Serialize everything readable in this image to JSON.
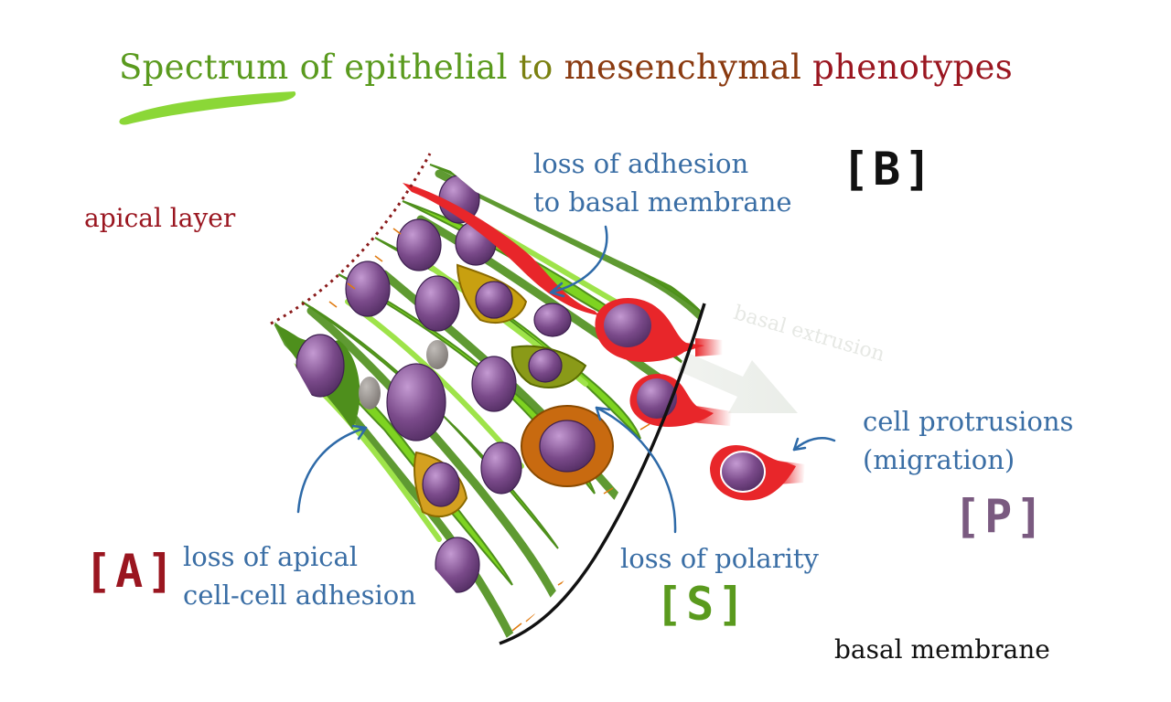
{
  "title": {
    "part1": "Spectrum of epithelial",
    "part2": "to",
    "part3": "mesenchymal",
    "part4": "phenotypes",
    "colors": [
      "#5a9a1e",
      "#6e8a12",
      "#8a3a10",
      "#9a1620"
    ]
  },
  "labels": {
    "apical_layer": "apical layer",
    "loss_adhesion_basal_1": "loss of adhesion",
    "loss_adhesion_basal_2": "to basal membrane",
    "basal_extrusion": "basal extrusion",
    "cell_protrusions_1": "cell protrusions",
    "cell_protrusions_2": "(migration)",
    "loss_apical_1": "loss of apical",
    "loss_apical_2": "cell-cell adhesion",
    "loss_polarity": "loss of polarity",
    "basal_membrane": "basal membrane"
  },
  "tags": {
    "A": {
      "text": "[A]",
      "color": "#9a1620"
    },
    "B": {
      "text": "[B]",
      "color": "#111111"
    },
    "S": {
      "text": "[S]",
      "color": "#5a9a1e"
    },
    "P": {
      "text": "[P]",
      "color": "#7a5a80"
    }
  },
  "colors": {
    "label_blue": "#3a6ea5",
    "apical_red": "#9a1620",
    "cell_green_light": "#7ed321",
    "cell_green_dark": "#4e8f1c",
    "nucleus_purple": "#7a4a8a",
    "mesenchymal_red": "#e8262a",
    "intermediate_gold": "#c8a010",
    "intermediate_orange": "#c86a10"
  }
}
